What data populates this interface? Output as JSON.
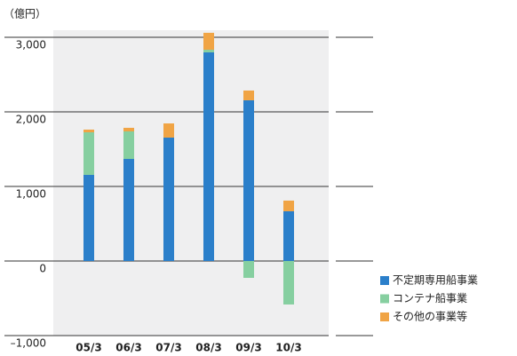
{
  "chart_data": {
    "type": "bar",
    "stacked": true,
    "unit_label": "（億円）",
    "categories": [
      "05/3",
      "06/3",
      "07/3",
      "08/3",
      "09/3",
      "10/3"
    ],
    "series": [
      {
        "name": "不定期専用船事業",
        "color": "#2b7fca",
        "values": [
          1155,
          1369,
          1655,
          2798,
          2155,
          667
        ]
      },
      {
        "name": "コンテナ船事業",
        "color": "#86cfa0",
        "values": [
          571,
          369,
          0,
          35,
          -226,
          -583
        ]
      },
      {
        "name": "その他の事業等",
        "color": "#f0a445",
        "values": [
          36,
          48,
          190,
          227,
          131,
          143
        ]
      }
    ],
    "ylim": [
      -1000,
      3000
    ],
    "yticks": [
      {
        "value": -1000,
        "label": "–1,000"
      },
      0,
      {
        "value": 1000,
        "label": "1,000"
      },
      {
        "value": 2000,
        "label": "2,000"
      },
      {
        "value": 3000,
        "label": "3,000"
      }
    ],
    "grid": true,
    "legend": "lower right"
  }
}
